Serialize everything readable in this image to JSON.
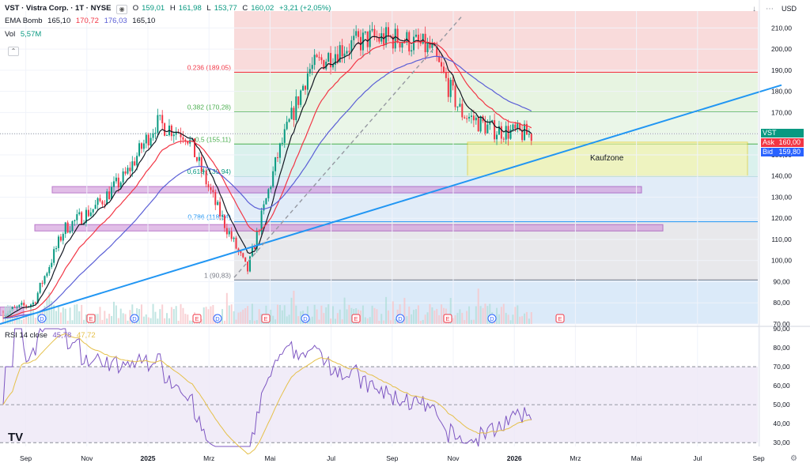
{
  "header": {
    "symbol": "VST · Vistra Corp. · 1T · NYSE",
    "o_label": "O",
    "o_value": "159,01",
    "h_label": "H",
    "h_value": "161,98",
    "l_label": "L",
    "l_value": "153,77",
    "c_label": "C",
    "c_value": "160,02",
    "change": "+3,21 (+2,05%)",
    "ema_label": "EMA Bomb",
    "ema_values": [
      "165,10",
      "170,72",
      "176,03",
      "165,10"
    ],
    "vol_label": "Vol",
    "vol_value": "5,57M",
    "currency": "USD"
  },
  "price_ticket": {
    "symbol": "VST",
    "ask_label": "Ask",
    "ask_value": "160,00",
    "bid_label": "Bid",
    "bid_value": "159,80"
  },
  "rsi_header": {
    "label": "RSI 14 close",
    "value1": "45,78",
    "value2": "47,72"
  },
  "kaufzone_label": "Kaufzone",
  "colors": {
    "up": "#089981",
    "down": "#f23645",
    "ema_fast": "#131722",
    "ema_mid": "#f23645",
    "ema_slow": "#5b5fd6",
    "trend": "#2196f3",
    "rsi": "#7e57c2",
    "rsi_ma": "#e5c04a"
  },
  "chart_data": {
    "type": "candlestick",
    "ylim": [
      70,
      218
    ],
    "y_ticks": [
      "210,00",
      "200,00",
      "190,00",
      "180,00",
      "170,00",
      "160,00",
      "150,00",
      "140,00",
      "130,00",
      "120,00",
      "110,00",
      "100,00",
      "90,00",
      "80,00",
      "70,00"
    ],
    "x_ticks": [
      "Sep",
      "Nov",
      "2025",
      "Mrz",
      "Mai",
      "Jul",
      "Sep",
      "Nov",
      "2026",
      "Mrz",
      "Mai",
      "Jul",
      "Sep"
    ],
    "fib_levels": [
      {
        "label": "0,236 (189,05)",
        "value": 189.05
      },
      {
        "label": "0,382 (170,28)",
        "value": 170.28
      },
      {
        "label": "0,5 (155,11)",
        "value": 155.11
      },
      {
        "label": "0,618 (139,94)",
        "value": 139.94
      },
      {
        "label": "0,786 (118,34)",
        "value": 118.34
      },
      {
        "label": "1 (90,83)",
        "value": 90.83
      }
    ],
    "kaufzone": {
      "low": 140,
      "high": 156
    },
    "resistance_zones": [
      {
        "low": 132,
        "high": 135
      },
      {
        "low": 114,
        "high": 117
      }
    ],
    "events": [
      "D",
      "E",
      "D",
      "E",
      "D",
      "E",
      "D",
      "E",
      "D",
      "E",
      "D",
      "E"
    ],
    "rsi": {
      "ylim": [
        28,
        90
      ],
      "y_ticks": [
        "90,00",
        "80,00",
        "70,00",
        "60,00",
        "50,00",
        "40,00",
        "30,00"
      ],
      "overbought": 70,
      "midline": 50,
      "oversold": 30
    },
    "price_points": [
      {
        "x": "Aug 2024",
        "y": 75
      },
      {
        "x": "Sep 2024",
        "y": 80
      },
      {
        "x": "Okt 2024",
        "y": 115
      },
      {
        "x": "Nov 2024",
        "y": 125
      },
      {
        "x": "Dez 2024",
        "y": 140
      },
      {
        "x": "Jan 2025",
        "y": 165
      },
      {
        "x": "Feb 2025",
        "y": 160
      },
      {
        "x": "Mrz 2025",
        "y": 125
      },
      {
        "x": "Apr 2025",
        "y": 95
      },
      {
        "x": "Mai 2025",
        "y": 150
      },
      {
        "x": "Jun 2025",
        "y": 190
      },
      {
        "x": "Jul 2025",
        "y": 200
      },
      {
        "x": "Aug 2025",
        "y": 205
      },
      {
        "x": "Sep 2025",
        "y": 205
      },
      {
        "x": "Okt 2025",
        "y": 200
      },
      {
        "x": "Nov 2025",
        "y": 170
      },
      {
        "x": "Dez 2025",
        "y": 162
      },
      {
        "x": "Jan 2026",
        "y": 160
      }
    ]
  }
}
